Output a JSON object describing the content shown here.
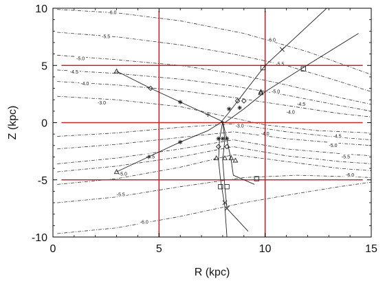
{
  "chart_data": {
    "type": "line",
    "xlabel": "R (kpc)",
    "ylabel": "Z (kpc)",
    "xlim": [
      0,
      15
    ],
    "ylim": [
      -10,
      10
    ],
    "xticks": [
      "0",
      "5",
      "10",
      "15"
    ],
    "yticks": [
      "10",
      "5",
      "0",
      "-5",
      "-10"
    ],
    "grid": false,
    "reference_lines": {
      "color": "#c0282a",
      "vertical_R": [
        5,
        10
      ],
      "horizontal_Z": [
        5,
        0,
        -5
      ],
      "horizontal_R_range": [
        0.4,
        14.6
      ]
    },
    "contours": [
      {
        "level": -6.0,
        "label": "-6.0",
        "points": [
          [
            0.2,
            9.9
          ],
          [
            3,
            9.6
          ],
          [
            6,
            8.9
          ],
          [
            9,
            7.8
          ],
          [
            12,
            6.2
          ],
          [
            15,
            4.2
          ]
        ]
      },
      {
        "level": -5.5,
        "label": "-5.5",
        "points": [
          [
            0.2,
            7.9
          ],
          [
            3,
            7.5
          ],
          [
            6,
            6.8
          ],
          [
            8.5,
            6.0
          ],
          [
            11,
            5.0
          ],
          [
            13.5,
            3.6
          ],
          [
            15,
            2.7
          ]
        ]
      },
      {
        "level": -5.0,
        "label": "-5.0",
        "points": [
          [
            0.2,
            5.9
          ],
          [
            3,
            5.5
          ],
          [
            6,
            5.0
          ],
          [
            8.5,
            4.3
          ],
          [
            11,
            3.3
          ],
          [
            13.5,
            2.2
          ],
          [
            15,
            1.6
          ]
        ]
      },
      {
        "level": -4.5,
        "label": "-4.5",
        "points": [
          [
            0.2,
            4.6
          ],
          [
            3,
            4.3
          ],
          [
            6,
            3.8
          ],
          [
            8.5,
            3.2
          ],
          [
            11,
            2.4
          ],
          [
            13.5,
            1.5
          ],
          [
            15,
            1.0
          ]
        ]
      },
      {
        "level": -4.0,
        "label": "-4.0",
        "points": [
          [
            0.2,
            3.6
          ],
          [
            3,
            3.3
          ],
          [
            6,
            2.8
          ],
          [
            8.5,
            2.2
          ],
          [
            11,
            1.5
          ],
          [
            13.5,
            0.8
          ],
          [
            15,
            0.5
          ]
        ]
      },
      {
        "level": -3.0,
        "label": "-3.0",
        "points": [
          [
            0.2,
            2.3
          ],
          [
            3,
            2.0
          ],
          [
            6,
            1.4
          ],
          [
            8,
            0.6
          ],
          [
            10,
            -0.2
          ],
          [
            12.5,
            -0.7
          ],
          [
            15,
            -0.9
          ]
        ]
      },
      {
        "level": -4.0,
        "label": "-4.0",
        "points": [
          [
            0.2,
            -1.2
          ],
          [
            3,
            -0.9
          ],
          [
            6,
            -0.4
          ],
          [
            8.5,
            -0.1
          ],
          [
            11,
            -0.8
          ],
          [
            13.5,
            -1.3
          ],
          [
            15,
            -1.5
          ]
        ]
      },
      {
        "level": -4.5,
        "label": "-4.5",
        "points": [
          [
            0.2,
            -2.3
          ],
          [
            3,
            -1.9
          ],
          [
            6,
            -1.3
          ],
          [
            8.5,
            -0.8
          ],
          [
            11,
            -1.4
          ],
          [
            13.5,
            -1.8
          ],
          [
            15,
            -2.0
          ]
        ]
      },
      {
        "level": -5.0,
        "label": "-5.0",
        "points": [
          [
            0.2,
            -3.6
          ],
          [
            3,
            -3.1
          ],
          [
            6,
            -2.3
          ],
          [
            8.5,
            -1.5
          ],
          [
            11,
            -2.3
          ],
          [
            13.5,
            -2.7
          ],
          [
            15,
            -2.9
          ]
        ]
      },
      {
        "level": -5.5,
        "label": "-5.5",
        "points": [
          [
            0.2,
            -5.4
          ],
          [
            3,
            -4.9
          ],
          [
            6,
            -3.9
          ],
          [
            8.5,
            -2.8
          ],
          [
            11,
            -3.4
          ],
          [
            13.5,
            -4.0
          ],
          [
            15,
            -4.2
          ]
        ]
      },
      {
        "level": -5.0,
        "label": "-5.0",
        "points": [
          [
            0.2,
            -4.3
          ],
          [
            3,
            -3.8
          ],
          [
            6,
            -3.0
          ],
          [
            8.5,
            -2.1
          ],
          [
            11,
            -2.9
          ],
          [
            13.5,
            -3.4
          ],
          [
            15,
            -3.6
          ]
        ]
      },
      {
        "level": -5.5,
        "label": "-5.5",
        "points": [
          [
            0.2,
            -7.0
          ],
          [
            3,
            -6.5
          ],
          [
            6,
            -5.6
          ],
          [
            9,
            -4.8
          ],
          [
            11.5,
            -4.6
          ],
          [
            13.5,
            -4.7
          ],
          [
            15,
            -4.8
          ]
        ]
      },
      {
        "level": -6.0,
        "label": "-6.0",
        "points": [
          [
            0.2,
            -9.7
          ],
          [
            3,
            -9.2
          ],
          [
            6,
            -8.2
          ],
          [
            9,
            -7.0
          ],
          [
            11.5,
            -6.2
          ],
          [
            13.5,
            -5.6
          ],
          [
            15,
            -5.2
          ]
        ]
      }
    ],
    "contour_labels": [
      {
        "text": "-6.0",
        "x": 2.8,
        "z": 9.6
      },
      {
        "text": "-6.0",
        "x": 10.3,
        "z": 7.2
      },
      {
        "text": "-5.5",
        "x": 2.5,
        "z": 7.5
      },
      {
        "text": "-5.5",
        "x": 10.7,
        "z": 5.1
      },
      {
        "text": "-5.0",
        "x": 1.3,
        "z": 5.6
      },
      {
        "text": "-5.0",
        "x": 10.5,
        "z": 2.7
      },
      {
        "text": "-4.5",
        "x": 1.0,
        "z": 4.4
      },
      {
        "text": "-4.5",
        "x": 11.7,
        "z": 1.6
      },
      {
        "text": "-4.0",
        "x": 1.5,
        "z": 3.4
      },
      {
        "text": "-4.0",
        "x": 11.2,
        "z": 0.9
      },
      {
        "text": "-3.0",
        "x": 2.3,
        "z": 1.7
      },
      {
        "text": "-3.0",
        "x": 8.8,
        "z": -0.3
      },
      {
        "text": "-4.0",
        "x": 10.0,
        "z": -1.0
      },
      {
        "text": "-4.5",
        "x": 13.4,
        "z": -1.2
      },
      {
        "text": "-4.5",
        "x": 4.6,
        "z": -3.0
      },
      {
        "text": "-5.0",
        "x": 13.2,
        "z": -2.0
      },
      {
        "text": "-5.0",
        "x": 3.3,
        "z": -4.5
      },
      {
        "text": "-5.5",
        "x": 13.8,
        "z": -3.0
      },
      {
        "text": "-5.5",
        "x": 3.2,
        "z": -6.3
      },
      {
        "text": "-6.0",
        "x": 14.0,
        "z": -4.6
      },
      {
        "text": "-6.0",
        "x": 4.3,
        "z": -8.7
      }
    ],
    "series": [
      {
        "name": "",
        "points": [
          [
            3.0,
            4.5
          ],
          [
            4.6,
            3.0
          ],
          [
            6.0,
            1.8
          ],
          [
            7.3,
            0.7
          ],
          [
            8.1,
            0.0
          ],
          [
            9.0,
            1.2
          ],
          [
            10.0,
            2.7
          ],
          [
            11.7,
            4.7
          ],
          [
            14.4,
            7.8
          ]
        ]
      },
      {
        "name": "",
        "points": [
          [
            7.9,
            0.0
          ],
          [
            8.3,
            0.9
          ],
          [
            9.0,
            2.6
          ],
          [
            10.0,
            5.0
          ],
          [
            12.9,
            10.0
          ]
        ]
      },
      {
        "name": "",
        "points": [
          [
            3.0,
            -4.3
          ],
          [
            4.5,
            -3.0
          ],
          [
            6.0,
            -1.7
          ],
          [
            7.3,
            -0.7
          ],
          [
            8.0,
            0.1
          ]
        ]
      },
      {
        "name": "",
        "points": [
          [
            8.0,
            0.1
          ],
          [
            7.85,
            -1.5
          ],
          [
            7.8,
            -3.3
          ],
          [
            7.9,
            -5.0
          ],
          [
            8.1,
            -7.3
          ],
          [
            8.2,
            -10.0
          ]
        ]
      },
      {
        "name": "",
        "points": [
          [
            8.0,
            0.1
          ],
          [
            8.2,
            -1.5
          ],
          [
            8.4,
            -3.3
          ],
          [
            8.5,
            -4.6
          ],
          [
            9.5,
            -5.4
          ]
        ]
      },
      {
        "name": "",
        "points": [
          [
            8.0,
            0.1
          ],
          [
            8.1,
            -1.5
          ],
          [
            8.0,
            -3.3
          ],
          [
            8.1,
            -5.6
          ],
          [
            8.2,
            -7.5
          ],
          [
            9.2,
            -9.5
          ]
        ]
      }
    ],
    "markers": [
      {
        "symbol": "triangle",
        "x": 3.0,
        "z": 4.5
      },
      {
        "symbol": "diamond",
        "x": 4.6,
        "z": 3.0
      },
      {
        "symbol": "asterisk",
        "x": 6.0,
        "z": 1.8
      },
      {
        "symbol": "plus",
        "x": 7.3,
        "z": 0.7
      },
      {
        "symbol": "triangle",
        "x": 3.0,
        "z": -4.3
      },
      {
        "symbol": "plus",
        "x": 4.5,
        "z": -3.0
      },
      {
        "symbol": "asterisk",
        "x": 6.0,
        "z": -1.7
      },
      {
        "symbol": "triangle",
        "x": 9.8,
        "z": 2.7
      },
      {
        "symbol": "diamond",
        "x": 8.7,
        "z": 1.9
      },
      {
        "symbol": "asterisk",
        "x": 8.3,
        "z": 1.2
      },
      {
        "symbol": "asterisk",
        "x": 8.8,
        "z": 1.3
      },
      {
        "symbol": "diamond",
        "x": 9.0,
        "z": 1.9
      },
      {
        "symbol": "triangle",
        "x": 9.8,
        "z": 2.6
      },
      {
        "symbol": "square",
        "x": 9.9,
        "z": 4.8
      },
      {
        "symbol": "square",
        "x": 11.8,
        "z": 4.7
      },
      {
        "symbol": "x",
        "x": 10.8,
        "z": 6.4
      },
      {
        "symbol": "asterisk",
        "x": 7.8,
        "z": -1.4
      },
      {
        "symbol": "asterisk",
        "x": 8.0,
        "z": -1.4
      },
      {
        "symbol": "asterisk",
        "x": 8.2,
        "z": -1.4
      },
      {
        "symbol": "diamond",
        "x": 7.8,
        "z": -2.1
      },
      {
        "symbol": "diamond",
        "x": 8.2,
        "z": -2.1
      },
      {
        "symbol": "triangle",
        "x": 7.7,
        "z": -3.1
      },
      {
        "symbol": "triangle",
        "x": 8.1,
        "z": -3.1
      },
      {
        "symbol": "triangle",
        "x": 8.4,
        "z": -3.1
      },
      {
        "symbol": "triangle",
        "x": 8.6,
        "z": -3.3
      },
      {
        "symbol": "square",
        "x": 7.9,
        "z": -5.6
      },
      {
        "symbol": "square",
        "x": 8.2,
        "z": -5.6
      },
      {
        "symbol": "square",
        "x": 9.6,
        "z": -4.9
      },
      {
        "symbol": "x",
        "x": 8.1,
        "z": -7.0
      },
      {
        "symbol": "x",
        "x": 8.2,
        "z": -7.5
      }
    ]
  }
}
